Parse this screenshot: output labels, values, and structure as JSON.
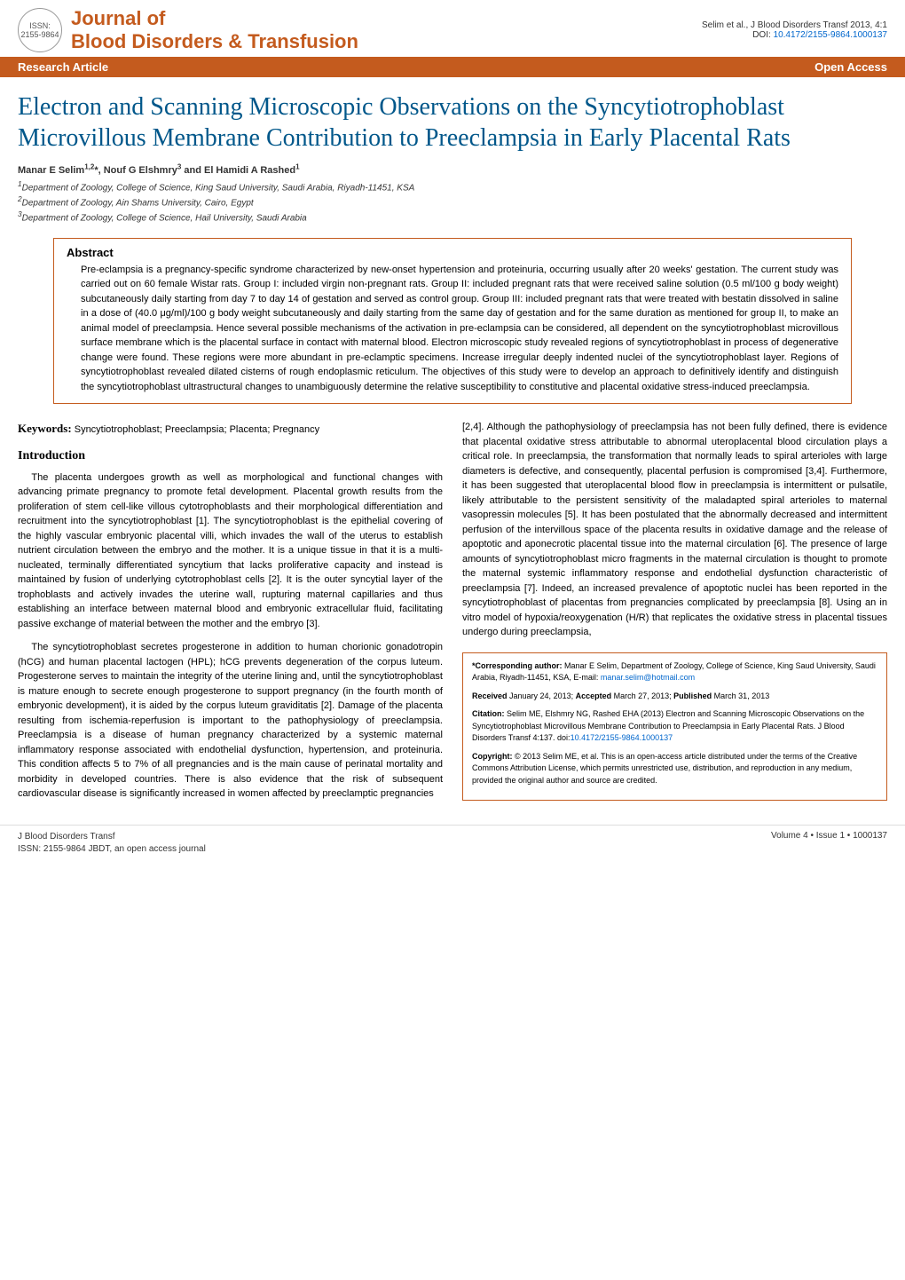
{
  "header": {
    "journal_line1": "Journal of",
    "journal_line2": "Blood Disorders & Transfusion",
    "logo_issn": "ISSN: 2155-9864",
    "citation_short": "Selim et al., J Blood Disorders Transf 2013, 4:1",
    "doi_label": "DOI: ",
    "doi": "10.4172/2155-9864.1000137"
  },
  "bar": {
    "left": "Research Article",
    "right": "Open Access"
  },
  "title": "Electron and Scanning Microscopic Observations on the Syncytiotrophoblast Microvillous Membrane Contribution to Preeclampsia in Early Placental Rats",
  "authors_html": "Manar E Selim<sup>1,2</sup>*, Nouf G Elshmry<sup>3</sup> and El Hamidi A Rashed<sup>1</sup>",
  "affiliations": [
    "1Department of Zoology, College of Science, King Saud University, Saudi Arabia, Riyadh-11451, KSA",
    "2Department of Zoology, Ain Shams University, Cairo, Egypt",
    "3Department of Zoology, College of Science, Hail University, Saudi Arabia"
  ],
  "abstract": {
    "heading": "Abstract",
    "body": "Pre-eclampsia is a pregnancy-specific syndrome characterized by new-onset hypertension and proteinuria, occurring usually after 20 weeks' gestation. The current study was carried out on 60 female Wistar rats. Group I: included virgin non-pregnant rats. Group II: included pregnant rats that were received saline solution (0.5 ml/100 g body weight) subcutaneously daily starting from day 7 to day 14 of gestation and served as control group. Group III: included pregnant rats that were treated with bestatin dissolved in saline in a dose of (40.0 μg/ml)/100 g body weight subcutaneously and daily starting from the same day of gestation and for the same duration as mentioned for group II, to make an animal model of preeclampsia. Hence several possible mechanisms of the activation in pre-eclampsia can be considered, all dependent on the syncytiotrophoblast microvillous surface membrane which is the placental surface in contact with maternal blood. Electron microscopic study revealed regions of syncytiotrophoblast in process of degenerative change were found. These regions were more abundant in pre-eclamptic specimens. Increase irregular deeply indented nuclei of the syncytiotrophoblast layer. Regions of syncytiotrophoblast revealed dilated cisterns of rough endoplasmic reticulum. The objectives of this study were to develop an approach to definitively identify and distinguish the syncytiotrophoblast ultrastructural changes to unambiguously determine the relative susceptibility to constitutive and placental oxidative stress-induced preeclampsia."
  },
  "keywords": {
    "label": "Keywords:",
    "text": " Syncytiotrophoblast; Preeclampsia; Placenta; Pregnancy"
  },
  "intro_heading": "Introduction",
  "left_paras": [
    "The placenta undergoes growth as well as morphological and functional changes with advancing primate pregnancy to promote fetal development. Placental growth results from the proliferation of stem cell-like villous cytotrophoblasts and their morphological differentiation and recruitment into the syncytiotrophoblast [1]. The syncytiotrophoblast is the epithelial covering of the highly vascular embryonic placental villi, which invades the wall of the uterus to establish nutrient circulation between the embryo and the mother. It is a unique tissue in that it is a multi-nucleated, terminally differentiated syncytium that lacks proliferative capacity and instead is maintained by fusion of underlying cytotrophoblast cells [2]. It is the outer syncytial layer of the trophoblasts and actively invades the uterine wall, rupturing maternal capillaries and thus establishing an interface between maternal blood and embryonic extracellular fluid, facilitating passive exchange of material between the mother and the embryo [3].",
    "The syncytiotrophoblast secretes progesterone in addition to human chorionic gonadotropin (hCG) and human placental lactogen (HPL); hCG prevents degeneration of the corpus luteum. Progesterone serves to maintain the integrity of the uterine lining and, until the syncytiotrophoblast is mature enough to secrete enough progesterone to support pregnancy (in the fourth month of embryonic development), it is aided by the corpus luteum graviditatis [2]. Damage of the placenta resulting from ischemia-reperfusion is important to the pathophysiology of preeclampsia. Preeclampsia is a disease of human pregnancy characterized by a systemic maternal inflammatory response associated with endothelial dysfunction, hypertension, and proteinuria. This condition affects 5 to 7% of all pregnancies and is the main cause of perinatal mortality and morbidity in developed countries. There is also evidence that the risk of subsequent cardiovascular disease is significantly increased in women affected by preeclamptic pregnancies"
  ],
  "right_para": "[2,4]. Although the pathophysiology of preeclampsia has not been fully defined, there is evidence that placental oxidative stress attributable to abnormal uteroplacental blood circulation plays a critical role. In preeclampsia, the transformation that normally leads to spiral arterioles with large diameters is defective, and consequently, placental perfusion is compromised [3,4]. Furthermore, it has been suggested that uteroplacental blood flow in preeclampsia is intermittent or pulsatile, likely attributable to the persistent sensitivity of the maladapted spiral arterioles to maternal vasopressin molecules [5]. It has been postulated that the abnormally decreased and intermittent perfusion of the intervillous space of the placenta results in oxidative damage and the release of apoptotic and aponecrotic placental tissue into the maternal circulation [6]. The presence of large amounts of syncytiotrophoblast micro fragments in the maternal circulation is thought to promote the maternal systemic inflammatory response and endothelial dysfunction characteristic of preeclampsia [7]. Indeed, an increased prevalence of apoptotic nuclei has been reported in the syncytiotrophoblast of placentas from pregnancies complicated by preeclampsia [8]. Using an in vitro model of hypoxia/reoxygenation (H/R) that replicates the oxidative stress in placental tissues undergo during preeclampsia,",
  "info_box": {
    "corresponding": {
      "label": "*Corresponding author:",
      "text": " Manar E Selim, Department of Zoology, College of Science, King Saud University, Saudi Arabia, Riyadh-11451, KSA, E-mail: ",
      "email": "manar.selim@hotmail.com"
    },
    "dates": "Received January 24, 2013; Accepted March 27, 2013; Published March 31, 2013",
    "citation": {
      "label": "Citation:",
      "text": " Selim ME, Elshmry NG, Rashed EHA (2013) Electron and Scanning Microscopic Observations on the Syncytiotrophoblast Microvillous Membrane Contribution to Preeclampsia in Early Placental Rats. J Blood Disorders Transf 4:137. doi:",
      "doi": "10.4172/2155-9864.1000137"
    },
    "copyright": {
      "label": "Copyright:",
      "text": " © 2013 Selim ME, et al. This is an open-access article distributed under the terms of the Creative Commons Attribution License, which permits unrestricted use, distribution, and reproduction in any medium, provided the original author and source are credited."
    }
  },
  "footer": {
    "left_line1": "J Blood Disorders Transf",
    "left_line2": "ISSN: 2155-9864 JBDT, an open access journal",
    "right": "Volume 4 • Issue 1 • 1000137"
  },
  "colors": {
    "accent_orange": "#c45b1e",
    "title_blue": "#00578a",
    "link_blue": "#0066cc"
  }
}
